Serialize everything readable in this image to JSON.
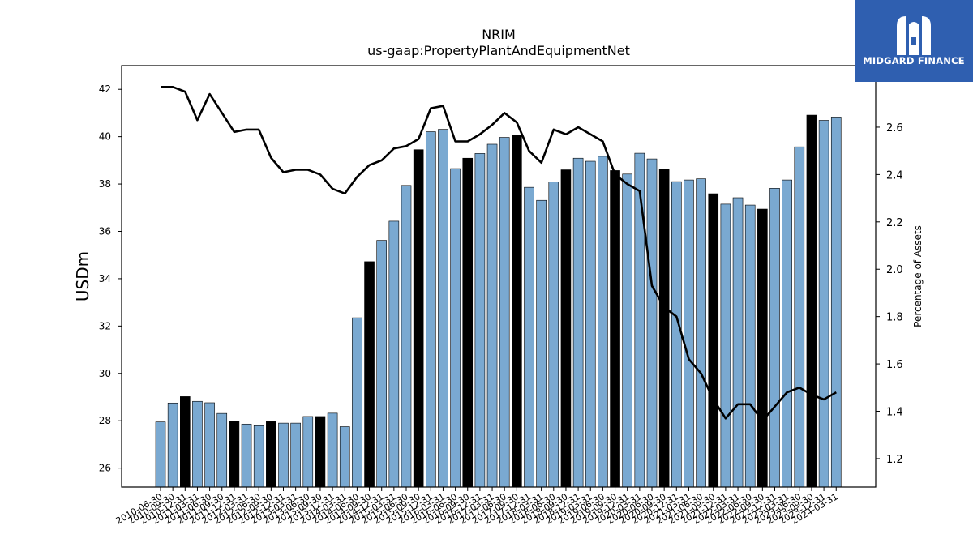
{
  "logo": {
    "text": "MIDGARD FINANCE",
    "icon": "midgard-m-icon",
    "bg_color": "#2f5fb0"
  },
  "chart_data": {
    "type": "bar",
    "title": "NRIM",
    "subtitle": "us-gaap:PropertyPlantAndEquipmentNet",
    "ylabel": "USDm",
    "y2label": "Percentage of Assets",
    "ylim": [
      25.2,
      43.0
    ],
    "y2lim": [
      1.08,
      2.86
    ],
    "yticks": [
      26,
      28,
      30,
      32,
      34,
      36,
      38,
      40,
      42
    ],
    "y2ticks": [
      1.2,
      1.4,
      1.6,
      1.8,
      2.0,
      2.2,
      2.4,
      2.6
    ],
    "colors": {
      "bar": "#7aa9d1",
      "bar_highlight": "#000000",
      "line": "#000000"
    },
    "categories": [
      "2010-06-30",
      "2010-09-30",
      "2010-12-31",
      "2011-03-31",
      "2011-06-30",
      "2011-09-30",
      "2011-12-31",
      "2012-03-31",
      "2012-06-30",
      "2012-09-30",
      "2012-12-31",
      "2013-03-31",
      "2013-06-30",
      "2013-09-30",
      "2013-12-31",
      "2014-03-31",
      "2014-06-30",
      "2014-09-30",
      "2014-12-31",
      "2015-03-31",
      "2015-06-30",
      "2015-09-30",
      "2015-12-31",
      "2016-03-31",
      "2016-06-30",
      "2016-09-30",
      "2016-12-31",
      "2017-03-31",
      "2017-06-30",
      "2017-09-30",
      "2017-12-31",
      "2018-03-31",
      "2018-06-30",
      "2018-09-30",
      "2018-12-31",
      "2019-03-31",
      "2019-06-30",
      "2019-09-30",
      "2019-12-31",
      "2020-03-31",
      "2020-06-30",
      "2020-09-30",
      "2020-12-31",
      "2021-03-31",
      "2021-06-30",
      "2021-09-30",
      "2021-12-31",
      "2022-03-31",
      "2022-06-30",
      "2022-09-30",
      "2022-12-31",
      "2023-03-31",
      "2023-06-30",
      "2023-09-30",
      "2023-12-31",
      "2024-03-31"
    ],
    "series": [
      {
        "type": "bar",
        "values": [
          27.95,
          28.75,
          29.02,
          28.82,
          28.76,
          28.31,
          27.98,
          27.86,
          27.79,
          27.97,
          27.9,
          27.9,
          28.18,
          28.18,
          28.32,
          27.75,
          32.35,
          34.72,
          35.62,
          36.43,
          37.94,
          39.45,
          40.21,
          40.31,
          38.65,
          39.09,
          39.29,
          39.68,
          39.97,
          40.05,
          37.86,
          37.31,
          38.09,
          38.6,
          39.09,
          38.96,
          39.17,
          38.57,
          38.42,
          39.3,
          39.06,
          38.61,
          38.1,
          38.17,
          38.22,
          37.59,
          37.15,
          37.42,
          37.11,
          36.94,
          37.82,
          38.17,
          39.57,
          40.91,
          40.69,
          40.83
        ],
        "highlight": [
          2,
          6,
          9,
          13,
          17,
          21,
          25,
          29,
          33,
          37,
          41,
          45,
          49,
          53
        ]
      },
      {
        "type": "line",
        "axis": "right",
        "values": [
          2.77,
          2.77,
          2.75,
          2.63,
          2.74,
          2.66,
          2.58,
          2.59,
          2.59,
          2.47,
          2.41,
          2.42,
          2.42,
          2.4,
          2.34,
          2.32,
          2.39,
          2.44,
          2.46,
          2.51,
          2.52,
          2.55,
          2.68,
          2.69,
          2.54,
          2.54,
          2.57,
          2.61,
          2.66,
          2.62,
          2.5,
          2.45,
          2.59,
          2.57,
          2.6,
          2.57,
          2.54,
          2.4,
          2.36,
          2.33,
          1.93,
          1.84,
          1.8,
          1.62,
          1.56,
          1.45,
          1.37,
          1.43,
          1.43,
          1.36,
          1.42,
          1.48,
          1.5,
          1.47,
          1.45,
          1.48
        ]
      }
    ]
  }
}
